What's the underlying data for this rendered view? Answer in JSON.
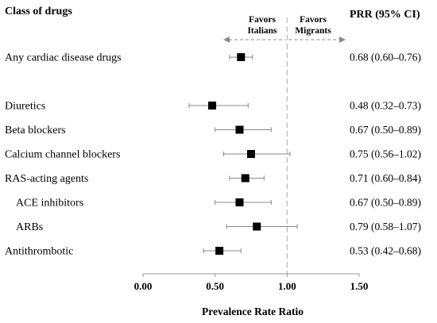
{
  "chart_data": {
    "type": "forest",
    "header_left": "Class of drugs",
    "header_right": "PRR (95% CI)",
    "favors_left_line1": "Favors",
    "favors_left_line2": "Italians",
    "favors_right_line1": "Favors",
    "favors_right_line2": "Migrants",
    "xlabel": "Prevalence Rate Ratio",
    "xlim": [
      0,
      1.5
    ],
    "xticks": [
      0,
      0.5,
      1.0,
      1.5
    ],
    "xtick_labels": [
      "0.00",
      "0.50",
      "1.00",
      "1.50"
    ],
    "reference_line": 1.0,
    "rows": [
      {
        "label": "Any cardiac disease drugs",
        "estimate": 0.68,
        "lower": 0.6,
        "upper": 0.76,
        "value_text": "0.68 (0.60–0.76)",
        "indent": 0,
        "row": 0
      },
      {
        "label": "Diuretics",
        "estimate": 0.48,
        "lower": 0.32,
        "upper": 0.73,
        "value_text": "0.48 (0.32–0.73)",
        "indent": 0,
        "row": 2
      },
      {
        "label": "Beta blockers",
        "estimate": 0.67,
        "lower": 0.5,
        "upper": 0.89,
        "value_text": "0.67 (0.50–0.89)",
        "indent": 0,
        "row": 3
      },
      {
        "label": "Calcium channel blockers",
        "estimate": 0.75,
        "lower": 0.56,
        "upper": 1.02,
        "value_text": "0.75 (0.56–1.02)",
        "indent": 0,
        "row": 4
      },
      {
        "label": "RAS-acting agents",
        "estimate": 0.71,
        "lower": 0.6,
        "upper": 0.84,
        "value_text": "0.71 (0.60–0.84)",
        "indent": 0,
        "row": 5
      },
      {
        "label": "ACE inhibitors",
        "estimate": 0.67,
        "lower": 0.5,
        "upper": 0.89,
        "value_text": "0.67 (0.50–0.89)",
        "indent": 1,
        "row": 6
      },
      {
        "label": "ARBs",
        "estimate": 0.79,
        "lower": 0.58,
        "upper": 1.07,
        "value_text": "0.79 (0.58–1.07)",
        "indent": 1,
        "row": 7
      },
      {
        "label": "Antithrombotic",
        "estimate": 0.53,
        "lower": 0.42,
        "upper": 0.68,
        "value_text": "0.53 (0.42–0.68)",
        "indent": 0,
        "row": 8
      }
    ]
  }
}
